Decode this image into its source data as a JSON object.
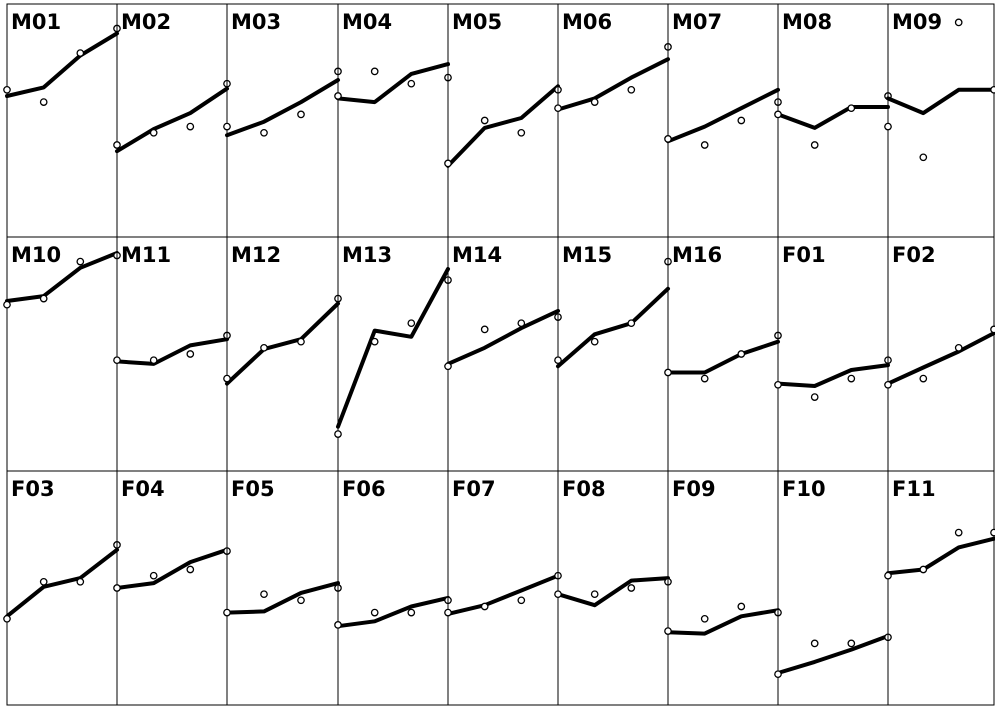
{
  "chart_data": {
    "type": "line",
    "layout": "lattice-9x3",
    "x": [
      8,
      10,
      12,
      14
    ],
    "xlim": [
      8,
      14
    ],
    "ylim": [
      14,
      33
    ],
    "grid": false,
    "legend": "none",
    "panels": [
      {
        "label": "M01",
        "observed": [
          26,
          25,
          29,
          31
        ],
        "fitted": [
          25.5,
          26.2,
          28.8,
          30.6
        ]
      },
      {
        "label": "M02",
        "observed": [
          21.5,
          22.5,
          23,
          26.5
        ],
        "fitted": [
          21,
          22.8,
          24.1,
          26.1
        ]
      },
      {
        "label": "M03",
        "observed": [
          23,
          22.5,
          24,
          27.5
        ],
        "fitted": [
          22.3,
          23.4,
          25,
          26.8
        ]
      },
      {
        "label": "M04",
        "observed": [
          25.5,
          27.5,
          26.5,
          27
        ],
        "fitted": [
          25.3,
          25,
          27.3,
          28.1
        ]
      },
      {
        "label": "M05",
        "observed": [
          20,
          23.5,
          22.5,
          26
        ],
        "fitted": [
          19.8,
          22.9,
          23.7,
          26.3
        ]
      },
      {
        "label": "M06",
        "observed": [
          24.5,
          25,
          26,
          29.5
        ],
        "fitted": [
          24.4,
          25.3,
          27,
          28.5
        ]
      },
      {
        "label": "M07",
        "observed": [
          22,
          21.5,
          23.5,
          25
        ],
        "fitted": [
          21.8,
          23,
          24.5,
          26
        ]
      },
      {
        "label": "M08",
        "observed": [
          24,
          21.5,
          24.5,
          25.5
        ],
        "fitted": [
          24,
          22.9,
          24.6,
          24.6
        ]
      },
      {
        "label": "M09",
        "observed": [
          23,
          20.5,
          31.5,
          26
        ],
        "fitted": [
          25.3,
          24.1,
          26,
          26
        ]
      },
      {
        "label": "M10",
        "observed": [
          27.5,
          28,
          31,
          31.5
        ],
        "fitted": [
          27.8,
          28.2,
          30.5,
          31.7
        ]
      },
      {
        "label": "M11",
        "observed": [
          23,
          23,
          23.5,
          25
        ],
        "fitted": [
          22.9,
          22.7,
          24.2,
          24.7
        ]
      },
      {
        "label": "M12",
        "observed": [
          21.5,
          24,
          24.5,
          28
        ],
        "fitted": [
          21.1,
          23.9,
          24.7,
          27.6
        ]
      },
      {
        "label": "M13",
        "observed": [
          17,
          24.5,
          26,
          29.5
        ],
        "fitted": [
          17.6,
          25.4,
          24.9,
          30.4
        ]
      },
      {
        "label": "M14",
        "observed": [
          22.5,
          25.5,
          26,
          26.5
        ],
        "fitted": [
          22.7,
          24,
          25.6,
          27
        ]
      },
      {
        "label": "M15",
        "observed": [
          23,
          24.5,
          26,
          31
        ],
        "fitted": [
          22.5,
          25.1,
          26,
          28.8
        ]
      },
      {
        "label": "M16",
        "observed": [
          22,
          21.5,
          23.5,
          25
        ],
        "fitted": [
          22,
          22,
          23.5,
          24.5
        ]
      },
      {
        "label": "F01",
        "observed": [
          21,
          20,
          21.5,
          23
        ],
        "fitted": [
          21.1,
          20.9,
          22.2,
          22.6
        ]
      },
      {
        "label": "F02",
        "observed": [
          21,
          21.5,
          24,
          25.5
        ],
        "fitted": [
          21.1,
          22.4,
          23.7,
          25.2
        ]
      },
      {
        "label": "F03",
        "observed": [
          21,
          24,
          24,
          27
        ],
        "fitted": [
          21.2,
          23.6,
          24.3,
          26.6
        ]
      },
      {
        "label": "F04",
        "observed": [
          23.5,
          24.5,
          25,
          26.5
        ],
        "fitted": [
          23.5,
          23.9,
          25.6,
          26.6
        ]
      },
      {
        "label": "F05",
        "observed": [
          21.5,
          23,
          22.5,
          23.5
        ],
        "fitted": [
          21.5,
          21.6,
          23.1,
          23.9
        ]
      },
      {
        "label": "F06",
        "observed": [
          20.5,
          21.5,
          21.5,
          22.5
        ],
        "fitted": [
          20.4,
          20.8,
          22,
          22.7
        ]
      },
      {
        "label": "F07",
        "observed": [
          21.5,
          22,
          22.5,
          24.5
        ],
        "fitted": [
          21.4,
          22.1,
          23.3,
          24.5
        ]
      },
      {
        "label": "F08",
        "observed": [
          23,
          23,
          23.5,
          24
        ],
        "fitted": [
          23,
          22.1,
          24.1,
          24.3
        ]
      },
      {
        "label": "F09",
        "observed": [
          20,
          21,
          22,
          21.5
        ],
        "fitted": [
          19.9,
          19.8,
          21.2,
          21.7
        ]
      },
      {
        "label": "F10",
        "observed": [
          16.5,
          19,
          19,
          19.5
        ],
        "fitted": [
          16.6,
          17.5,
          18.5,
          19.6
        ]
      },
      {
        "label": "F11",
        "observed": [
          24.5,
          25,
          28,
          28
        ],
        "fitted": [
          24.7,
          25,
          26.8,
          27.5
        ]
      }
    ]
  }
}
